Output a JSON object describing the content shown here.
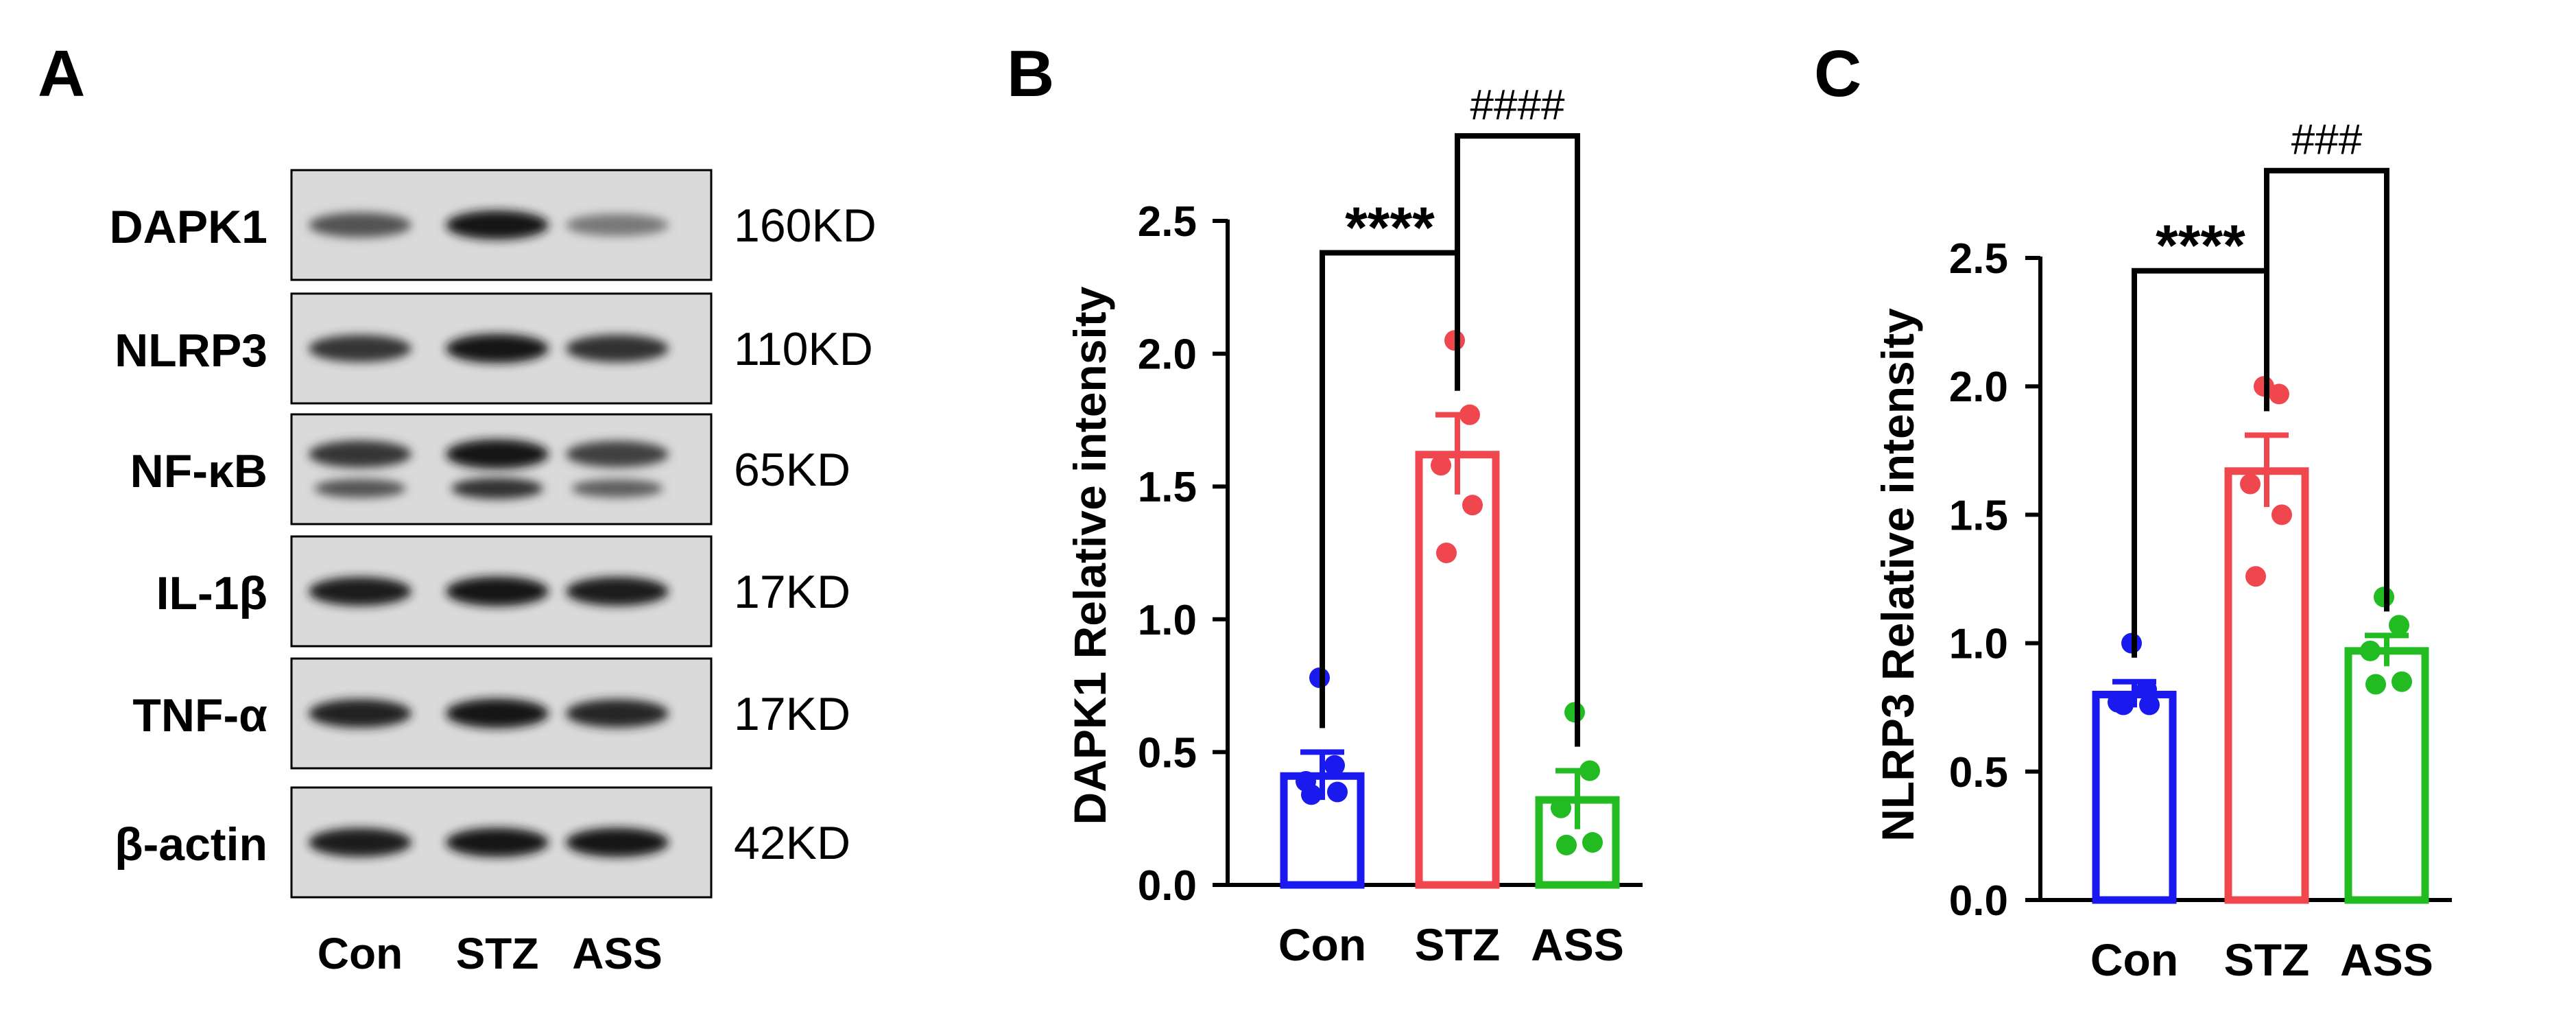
{
  "figure": {
    "panels": {
      "A": "A",
      "B": "B",
      "C": "C"
    }
  },
  "western_blot": {
    "rows": [
      {
        "protein": "DAPK1",
        "size": "160KD",
        "bands": [
          0.62,
          0.92,
          0.42
        ],
        "double": false
      },
      {
        "protein": "NLRP3",
        "size": "110KD",
        "bands": [
          0.78,
          0.92,
          0.8
        ],
        "double": false
      },
      {
        "protein": "NF-κB",
        "size": "65KD",
        "bands": [
          0.78,
          0.95,
          0.72
        ],
        "double": true
      },
      {
        "protein": "IL-1β",
        "size": "17KD",
        "bands": [
          0.9,
          0.95,
          0.9
        ],
        "double": false
      },
      {
        "protein": "TNF-α",
        "size": "17KD",
        "bands": [
          0.88,
          0.95,
          0.86
        ],
        "double": false
      },
      {
        "protein": "β-actin",
        "size": "42KD",
        "bands": [
          0.9,
          0.92,
          0.92
        ],
        "double": false
      }
    ],
    "lanes": [
      "Con",
      "STZ",
      "ASS"
    ]
  },
  "chart_data": [
    {
      "type": "bar",
      "panel": "B",
      "title": "",
      "ylabel": "DAPK1 Relative intensity",
      "xlabel": "",
      "categories": [
        "Con",
        "STZ",
        "ASS"
      ],
      "values": [
        0.41,
        1.62,
        0.32
      ],
      "errors": [
        0.09,
        0.15,
        0.11
      ],
      "points": [
        [
          0.78,
          0.45,
          0.39,
          0.35,
          0.34
        ],
        [
          2.05,
          1.77,
          1.58,
          1.43,
          1.25
        ],
        [
          0.65,
          0.43,
          0.29,
          0.16,
          0.15
        ]
      ],
      "colors": [
        "#1a1aee",
        "#f0474f",
        "#22bb22"
      ],
      "ylim": [
        0,
        2.5
      ],
      "yticks": [
        "0.0",
        "0.5",
        "1.0",
        "1.5",
        "2.0",
        "2.5"
      ],
      "sig": [
        {
          "from": 0,
          "to": 1,
          "label": "****",
          "level": 2.38
        },
        {
          "from": 1,
          "to": 2,
          "label": "####",
          "level": 2.82
        }
      ]
    },
    {
      "type": "bar",
      "panel": "C",
      "title": "",
      "ylabel": "NLRP3 Relative intensity",
      "xlabel": "",
      "categories": [
        "Con",
        "STZ",
        "ASS"
      ],
      "values": [
        0.8,
        1.67,
        0.97
      ],
      "errors": [
        0.05,
        0.14,
        0.06
      ],
      "points": [
        [
          1.0,
          0.82,
          0.77,
          0.76,
          0.76
        ],
        [
          2.0,
          1.97,
          1.62,
          1.5,
          1.26
        ],
        [
          1.18,
          1.07,
          0.97,
          0.85,
          0.84
        ]
      ],
      "colors": [
        "#1a1aee",
        "#f0474f",
        "#22bb22"
      ],
      "ylim": [
        0,
        2.5
      ],
      "yticks": [
        "0.0",
        "0.5",
        "1.0",
        "1.5",
        "2.0",
        "2.5"
      ],
      "sig": [
        {
          "from": 0,
          "to": 1,
          "label": "****",
          "level": 2.45
        },
        {
          "from": 1,
          "to": 2,
          "label": "###",
          "level": 2.84
        }
      ]
    }
  ]
}
